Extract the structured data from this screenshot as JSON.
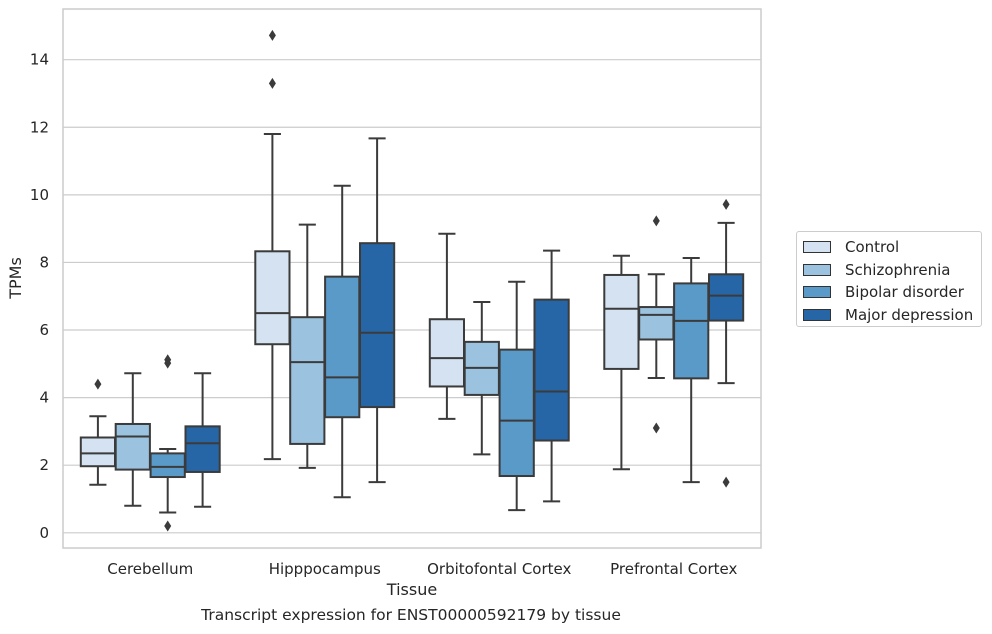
{
  "chart_data": {
    "type": "box",
    "caption": "Transcript expression for ENST00000592179 by tissue",
    "xlabel": "Tissue",
    "ylabel": "TPMs",
    "ylim": [
      -0.45,
      15.5
    ],
    "yticks": [
      0,
      2,
      4,
      6,
      8,
      10,
      12,
      14
    ],
    "categories": [
      "Cerebellum",
      "Hipppocampus",
      "Orbitofontal Cortex",
      "Prefrontal Cortex"
    ],
    "grid": true,
    "legend_position": "right",
    "series": [
      {
        "name": "Control",
        "color": "#d4e2f1",
        "boxes": [
          {
            "whisker_low": 1.42,
            "q1": 1.97,
            "median": 2.35,
            "q3": 2.82,
            "whisker_high": 3.45,
            "outliers": [
              4.4
            ]
          },
          {
            "whisker_low": 2.18,
            "q1": 5.58,
            "median": 6.5,
            "q3": 8.33,
            "whisker_high": 11.8,
            "outliers": [
              14.72,
              13.3
            ]
          },
          {
            "whisker_low": 3.37,
            "q1": 4.33,
            "median": 5.17,
            "q3": 6.32,
            "whisker_high": 8.85,
            "outliers": []
          },
          {
            "whisker_low": 1.88,
            "q1": 4.85,
            "median": 6.63,
            "q3": 7.63,
            "whisker_high": 8.2,
            "outliers": []
          }
        ]
      },
      {
        "name": "Schizophrenia",
        "color": "#9bc2de",
        "boxes": [
          {
            "whisker_low": 0.8,
            "q1": 1.87,
            "median": 2.85,
            "q3": 3.22,
            "whisker_high": 4.72,
            "outliers": []
          },
          {
            "whisker_low": 1.92,
            "q1": 2.63,
            "median": 5.05,
            "q3": 6.38,
            "whisker_high": 9.12,
            "outliers": []
          },
          {
            "whisker_low": 2.32,
            "q1": 4.08,
            "median": 4.88,
            "q3": 5.65,
            "whisker_high": 6.83,
            "outliers": []
          },
          {
            "whisker_low": 4.58,
            "q1": 5.72,
            "median": 6.45,
            "q3": 6.68,
            "whisker_high": 7.65,
            "outliers": [
              9.23,
              3.1
            ]
          }
        ]
      },
      {
        "name": "Bipolar disorder",
        "color": "#5a9ac8",
        "boxes": [
          {
            "whisker_low": 0.6,
            "q1": 1.65,
            "median": 1.95,
            "q3": 2.35,
            "whisker_high": 2.48,
            "outliers": [
              5.12,
              5.02,
              0.2
            ]
          },
          {
            "whisker_low": 1.05,
            "q1": 3.42,
            "median": 4.6,
            "q3": 7.58,
            "whisker_high": 10.27,
            "outliers": []
          },
          {
            "whisker_low": 0.67,
            "q1": 1.68,
            "median": 3.32,
            "q3": 5.42,
            "whisker_high": 7.43,
            "outliers": []
          },
          {
            "whisker_low": 1.5,
            "q1": 4.57,
            "median": 6.27,
            "q3": 7.38,
            "whisker_high": 8.13,
            "outliers": []
          }
        ]
      },
      {
        "name": "Major depression",
        "color": "#2666a6",
        "boxes": [
          {
            "whisker_low": 0.77,
            "q1": 1.8,
            "median": 2.65,
            "q3": 3.15,
            "whisker_high": 4.72,
            "outliers": []
          },
          {
            "whisker_low": 1.5,
            "q1": 3.72,
            "median": 5.92,
            "q3": 8.57,
            "whisker_high": 11.67,
            "outliers": []
          },
          {
            "whisker_low": 0.93,
            "q1": 2.73,
            "median": 4.18,
            "q3": 6.9,
            "whisker_high": 8.35,
            "outliers": []
          },
          {
            "whisker_low": 4.43,
            "q1": 6.28,
            "median": 7.02,
            "q3": 7.65,
            "whisker_high": 9.17,
            "outliers": [
              9.72,
              1.5
            ]
          }
        ]
      }
    ]
  }
}
